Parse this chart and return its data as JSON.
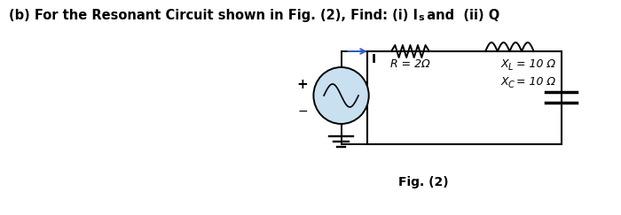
{
  "title_main": "(b) For the Resonant Circuit shown in Fig. (2), Find: (i) I  and  (ii) Q",
  "title_sub": "s",
  "fig_caption": "Fig. (2)",
  "R_label": "R = 2Ω",
  "XL_label": "X",
  "XL_sub": "L",
  "XL_val": " = 10 Ω",
  "XC_label": "X",
  "XC_sub": "C",
  "XC_val": " = 10 Ω",
  "background": "#ffffff",
  "box_fill": "#ffffff",
  "line_color": "#000000",
  "source_fill": "#c8e0f0",
  "arrow_color": "#3060c0"
}
